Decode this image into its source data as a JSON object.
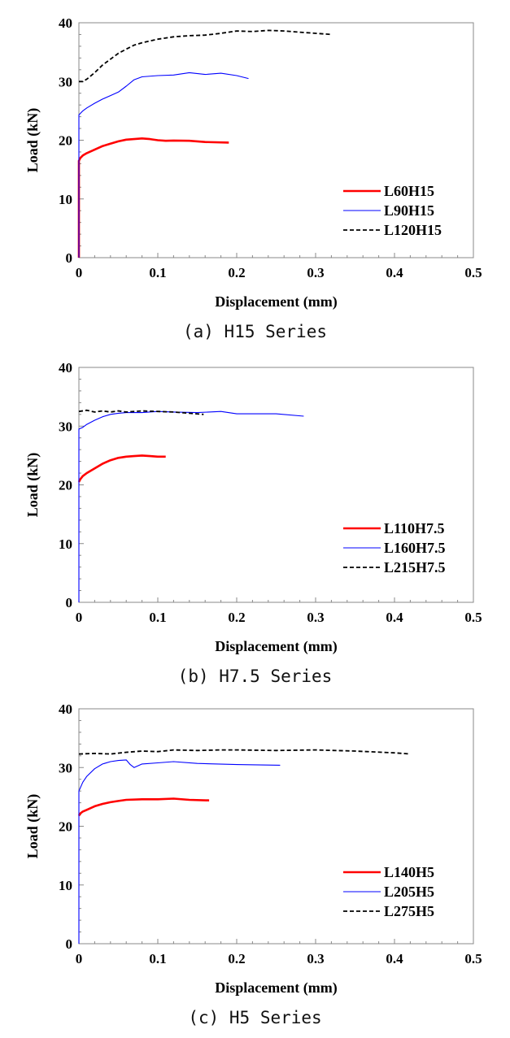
{
  "chart_data": [
    {
      "type": "line",
      "caption": "(a) H15 Series",
      "xlabel": "Displacement (mm)",
      "ylabel": "Load (kN)",
      "xlim": [
        0,
        0.5
      ],
      "ylim": [
        0,
        40
      ],
      "xticks": [
        "0",
        "0.1",
        "0.2",
        "0.3",
        "0.4",
        "0.5"
      ],
      "yticks": [
        "0",
        "10",
        "20",
        "30",
        "40"
      ],
      "grid": false,
      "legend_position": "bottom-right",
      "series": [
        {
          "name": "L60H15",
          "color": "#ff0000",
          "style": "solid-thick",
          "x": [
            0,
            0,
            0,
            0,
            0,
            0.002,
            0.005,
            0.01,
            0.02,
            0.03,
            0.04,
            0.05,
            0.06,
            0.07,
            0.08,
            0.09,
            0.1,
            0.11,
            0.12,
            0.14,
            0.16,
            0.19
          ],
          "y": [
            0,
            5,
            10,
            14,
            16.5,
            17,
            17.4,
            17.8,
            18.4,
            19,
            19.4,
            19.8,
            20.1,
            20.2,
            20.3,
            20.2,
            20,
            19.9,
            19.95,
            19.9,
            19.7,
            19.6
          ]
        },
        {
          "name": "L90H15",
          "color": "#0000ff",
          "style": "solid-thin",
          "x": [
            0,
            0,
            0.005,
            0.01,
            0.02,
            0.03,
            0.04,
            0.05,
            0.06,
            0.07,
            0.08,
            0.1,
            0.12,
            0.14,
            0.16,
            0.18,
            0.2,
            0.215
          ],
          "y": [
            0,
            24.3,
            25,
            25.5,
            26.3,
            27,
            27.6,
            28.2,
            29.2,
            30.3,
            30.8,
            31,
            31.1,
            31.5,
            31.2,
            31.4,
            31,
            30.5
          ]
        },
        {
          "name": "L120H15",
          "color": "#000000",
          "style": "dashed",
          "x": [
            0,
            0.005,
            0.01,
            0.02,
            0.03,
            0.04,
            0.05,
            0.06,
            0.07,
            0.08,
            0.1,
            0.12,
            0.14,
            0.16,
            0.18,
            0.2,
            0.22,
            0.24,
            0.26,
            0.28,
            0.3,
            0.32
          ],
          "y": [
            30,
            30,
            30.4,
            31.5,
            32.8,
            33.8,
            34.8,
            35.5,
            36.2,
            36.6,
            37.2,
            37.6,
            37.8,
            37.9,
            38.2,
            38.6,
            38.5,
            38.7,
            38.6,
            38.4,
            38.2,
            38
          ]
        }
      ]
    },
    {
      "type": "line",
      "caption": "(b) H7.5 Series",
      "xlabel": "Displacement (mm)",
      "ylabel": "Load (kN)",
      "xlim": [
        0,
        0.5
      ],
      "ylim": [
        0,
        40
      ],
      "xticks": [
        "0",
        "0.1",
        "0.2",
        "0.3",
        "0.4",
        "0.5"
      ],
      "yticks": [
        "0",
        "10",
        "20",
        "30",
        "40"
      ],
      "grid": false,
      "legend_position": "bottom-right",
      "series": [
        {
          "name": "L110H7.5",
          "color": "#ff0000",
          "style": "solid-thick",
          "x": [
            0,
            0.002,
            0.005,
            0.01,
            0.02,
            0.03,
            0.04,
            0.05,
            0.06,
            0.07,
            0.08,
            0.09,
            0.1,
            0.11
          ],
          "y": [
            20.5,
            21,
            21.5,
            22,
            22.8,
            23.6,
            24.2,
            24.6,
            24.8,
            24.9,
            25,
            24.9,
            24.8,
            24.8
          ]
        },
        {
          "name": "L160H7.5",
          "color": "#0000ff",
          "style": "solid-thin",
          "x": [
            0,
            0,
            0.005,
            0.01,
            0.02,
            0.03,
            0.04,
            0.05,
            0.06,
            0.08,
            0.1,
            0.12,
            0.15,
            0.18,
            0.2,
            0.22,
            0.25,
            0.285
          ],
          "y": [
            0,
            29.5,
            29.8,
            30.3,
            31,
            31.6,
            32,
            32.2,
            32.3,
            32.3,
            32.5,
            32.4,
            32.3,
            32.5,
            32.1,
            32.1,
            32.1,
            31.7
          ]
        },
        {
          "name": "L215H7.5",
          "color": "#000000",
          "style": "dashed",
          "x": [
            0,
            0.01,
            0.02,
            0.03,
            0.04,
            0.05,
            0.06,
            0.08,
            0.1,
            0.12,
            0.14,
            0.158
          ],
          "y": [
            32.5,
            32.7,
            32.4,
            32.6,
            32.4,
            32.6,
            32.4,
            32.6,
            32.5,
            32.4,
            32.2,
            32
          ]
        }
      ]
    },
    {
      "type": "line",
      "caption": "(c) H5 Series",
      "xlabel": "Displacement (mm)",
      "ylabel": "Load (kN)",
      "xlim": [
        0,
        0.5
      ],
      "ylim": [
        0,
        40
      ],
      "xticks": [
        "0",
        "0.1",
        "0.2",
        "0.3",
        "0.4",
        "0.5"
      ],
      "yticks": [
        "0",
        "10",
        "20",
        "30",
        "40"
      ],
      "grid": false,
      "legend_position": "bottom-right",
      "series": [
        {
          "name": "L140H5",
          "color": "#ff0000",
          "style": "solid-thick",
          "x": [
            0,
            0.002,
            0.005,
            0.01,
            0.02,
            0.03,
            0.04,
            0.05,
            0.06,
            0.08,
            0.1,
            0.12,
            0.14,
            0.165
          ],
          "y": [
            21.8,
            22.2,
            22.5,
            22.8,
            23.4,
            23.8,
            24.1,
            24.3,
            24.5,
            24.6,
            24.6,
            24.7,
            24.5,
            24.4
          ]
        },
        {
          "name": "L205H5",
          "color": "#0000ff",
          "style": "solid-thin",
          "x": [
            0,
            0,
            0.005,
            0.01,
            0.02,
            0.03,
            0.04,
            0.05,
            0.06,
            0.065,
            0.07,
            0.08,
            0.1,
            0.12,
            0.15,
            0.2,
            0.255
          ],
          "y": [
            0,
            26,
            27.5,
            28.5,
            29.8,
            30.6,
            31,
            31.2,
            31.3,
            30.5,
            30,
            30.6,
            30.8,
            31,
            30.7,
            30.5,
            30.4
          ]
        },
        {
          "name": "L275H5",
          "color": "#000000",
          "style": "dashed",
          "x": [
            0,
            0.02,
            0.04,
            0.06,
            0.08,
            0.1,
            0.12,
            0.15,
            0.18,
            0.2,
            0.25,
            0.3,
            0.35,
            0.4,
            0.42
          ],
          "y": [
            32.3,
            32.4,
            32.3,
            32.6,
            32.8,
            32.7,
            33,
            32.9,
            33,
            33,
            32.9,
            33,
            32.8,
            32.5,
            32.3
          ]
        }
      ]
    }
  ]
}
